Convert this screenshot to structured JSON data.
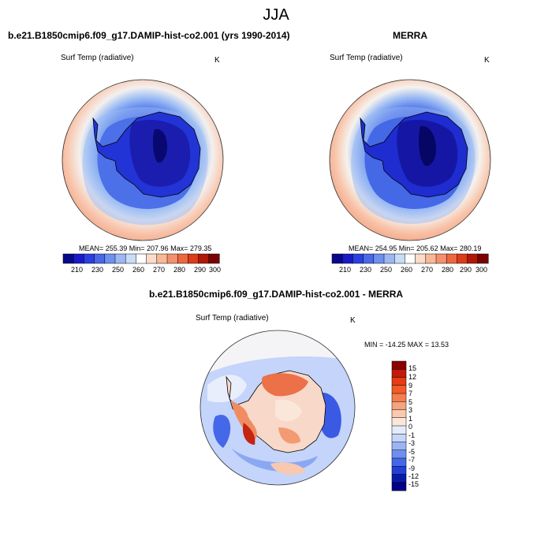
{
  "page": {
    "season": "JJA"
  },
  "panels": [
    {
      "title": "b.e21.B1850cmip6.f09_g17.DAMIP-hist-co2.001 (yrs 1990-2014)",
      "variable": "Surf Temp (radiative)",
      "units": "K",
      "stats": "MEAN= 255.39  Min= 207.96  Max= 279.35",
      "colorbar_labels": [
        "210",
        "230",
        "250",
        "260",
        "270",
        "280",
        "290",
        "300"
      ]
    },
    {
      "title": "MERRA",
      "variable": "Surf Temp (radiative)",
      "units": "K",
      "stats": "MEAN= 254.95  Min= 205.62  Max= 280.19",
      "colorbar_labels": [
        "210",
        "230",
        "250",
        "260",
        "270",
        "280",
        "290",
        "300"
      ]
    },
    {
      "title": "b.e21.B1850cmip6.f09_g17.DAMIP-hist-co2.001 - MERRA",
      "variable": "Surf Temp (radiative)",
      "units": "K",
      "stats": "MIN = -14.25  MAX =  13.53",
      "colorbar_labels": [
        "15",
        "12",
        "9",
        "7",
        "5",
        "3",
        "1",
        "0",
        "-1",
        "-3",
        "-5",
        "-7",
        "-9",
        "-12",
        "-15"
      ]
    }
  ],
  "colors": {
    "abs_scale": [
      "#08088a",
      "#1a1ac8",
      "#2a40e0",
      "#4a68e8",
      "#6e90ee",
      "#9cb8f4",
      "#c8dcf8",
      "#ffffff",
      "#fcdcc8",
      "#f8b898",
      "#f49070",
      "#ec6840",
      "#dc3c18",
      "#b01808",
      "#780404"
    ],
    "diff_scale": [
      "#8a0000",
      "#c41a08",
      "#e43c14",
      "#f25a28",
      "#f47e4e",
      "#f6a47c",
      "#f9cab0",
      "#fbe6da",
      "#e4ecfc",
      "#c6d6fa",
      "#9cb4f4",
      "#6e8ef0",
      "#4468e8",
      "#2440d4",
      "#0a1aa8",
      "#000088"
    ]
  }
}
